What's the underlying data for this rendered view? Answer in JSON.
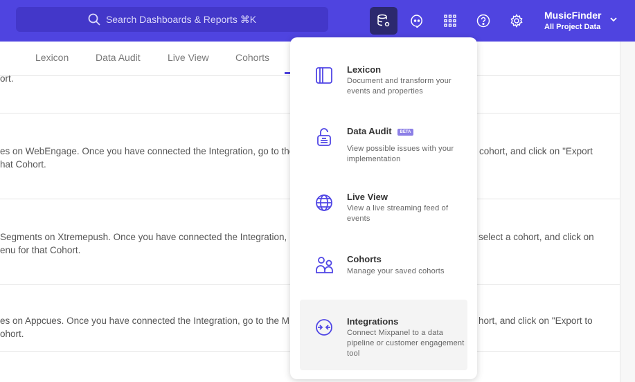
{
  "header": {
    "search_placeholder": "Search Dashboards & Reports ⌘K",
    "project_name": "MusicFinder",
    "project_scope": "All Project Data",
    "icons": [
      "data-management-icon",
      "chat-icon",
      "apps-grid-icon",
      "help-icon",
      "settings-icon"
    ],
    "brand_color": "#4f44e0"
  },
  "tabs": [
    {
      "label": "Lexicon"
    },
    {
      "label": "Data Audit"
    },
    {
      "label": "Live View"
    },
    {
      "label": "Cohorts"
    }
  ],
  "rows": [
    {
      "lines": [
        "ort."
      ]
    },
    {
      "lines": [
        "es on WebEngage. Once you have connected the Integration, go to the",
        "hat Cohort."
      ],
      "right": "cohort, and click on \"Export"
    },
    {
      "lines": [
        "Segments on Xtremepush. Once you have connected the Integration, ",
        "enu for that Cohort."
      ],
      "right": "select a cohort, and click on"
    },
    {
      "lines": [
        "es on Appcues. Once you have connected the Integration, go to the M",
        "ohort."
      ],
      "right": "hort, and click on \"Export to"
    }
  ],
  "menu": [
    {
      "title": "Lexicon",
      "desc": "Document and transform your events and properties",
      "icon": "book-icon"
    },
    {
      "title": "Data Audit",
      "badge": "BETA",
      "desc": "View possible issues with your implementation",
      "icon": "audit-lock-icon"
    },
    {
      "title": "Live View",
      "desc": "View a live streaming feed of events",
      "icon": "globe-icon"
    },
    {
      "title": "Cohorts",
      "desc": "Manage your saved cohorts",
      "icon": "users-icon"
    },
    {
      "title": "Integrations",
      "desc": "Connect Mixpanel to a data pipeline or customer engagement tool",
      "icon": "integrations-icon"
    }
  ]
}
